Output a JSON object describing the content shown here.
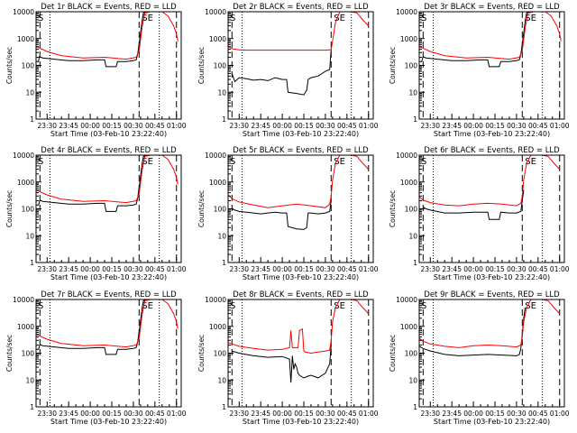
{
  "common": {
    "xlabel": "Start Time (03-Feb-10 23:22:40)",
    "ylabel": "Counts/sec",
    "xtick_labels": [
      "23:30",
      "23:45",
      "00:00",
      "00:15",
      "00:30",
      "00:45",
      "01:00"
    ],
    "ytick_labels": [
      "1",
      "10",
      "100",
      "1000",
      "10000"
    ],
    "colors": {
      "events": "#000000",
      "lld": "#ff0000",
      "axes": "#000000"
    }
  },
  "chart_data": [
    {
      "type": "line",
      "title": "Det 1r BLACK = Events, RED = LLD",
      "corner_labels": [
        "S",
        "SE"
      ],
      "ylim": [
        1,
        10000
      ],
      "yscale": "log",
      "xlim_minutes_after_2330": [
        -7.7,
        93.3
      ],
      "dashed_lines": [
        -5,
        64,
        90
      ],
      "dotted_lines": [
        2,
        78
      ],
      "series": [
        {
          "name": "Events",
          "x": [
            -7.5,
            -6,
            -5.5,
            -3,
            5,
            15,
            25,
            35,
            40,
            41,
            48,
            49,
            55,
            60,
            62,
            63,
            64.5,
            66,
            67,
            69
          ],
          "y": [
            140,
            140,
            210,
            190,
            170,
            150,
            150,
            160,
            160,
            90,
            90,
            140,
            140,
            150,
            160,
            260,
            1000,
            4500,
            9000,
            10000
          ]
        },
        {
          "name": "LLD",
          "x": [
            -7.5,
            0,
            10,
            25,
            40,
            55,
            62,
            64,
            66,
            68,
            72,
            76,
            80,
            84,
            88,
            90,
            91
          ],
          "y": [
            500,
            330,
            230,
            190,
            200,
            170,
            200,
            350,
            2500,
            9000,
            10000,
            10000,
            10000,
            7000,
            3000,
            1500,
            800
          ]
        }
      ]
    },
    {
      "type": "line",
      "title": "Det 2r BLACK = Events, RED = LLD",
      "corner_labels": [
        "S",
        "SE"
      ],
      "ylim": [
        1,
        10000
      ],
      "yscale": "log",
      "xlim_minutes_after_2330": [
        -7.7,
        93.3
      ],
      "dashed_lines": [
        -5,
        64,
        90
      ],
      "dotted_lines": [
        2,
        78
      ],
      "series": [
        {
          "name": "Events",
          "x": [
            -5,
            -3,
            0,
            5,
            10,
            15,
            20,
            25,
            30,
            33,
            34,
            40,
            45,
            47,
            48,
            50,
            55,
            60,
            63,
            64
          ],
          "y": [
            50,
            25,
            35,
            32,
            28,
            30,
            27,
            35,
            30,
            30,
            10,
            9,
            8,
            12,
            30,
            35,
            40,
            60,
            70,
            400
          ]
        },
        {
          "name": "LLD",
          "x": [
            -7.5,
            -5,
            0,
            5,
            10,
            20,
            30,
            40,
            50,
            60,
            63,
            64,
            65,
            67,
            70,
            74,
            78,
            82,
            86,
            90
          ],
          "y": [
            500,
            420,
            380,
            370,
            370,
            370,
            370,
            370,
            370,
            370,
            380,
            400,
            800,
            4000,
            10000,
            10000,
            10000,
            9000,
            5000,
            3000
          ]
        }
      ]
    },
    {
      "type": "line",
      "title": "Det 3r BLACK = Events, RED = LLD",
      "corner_labels": [
        "S",
        "SE"
      ],
      "ylim": [
        1,
        10000
      ],
      "yscale": "log",
      "xlim_minutes_after_2330": [
        -7.7,
        93.3
      ],
      "dashed_lines": [
        -5,
        64,
        90
      ],
      "dotted_lines": [
        2,
        78
      ],
      "series": [
        {
          "name": "Events",
          "x": [
            -7.5,
            -6,
            -5,
            -3,
            5,
            15,
            25,
            35,
            40,
            41,
            48,
            49,
            55,
            60,
            62,
            63,
            64.5,
            66,
            67,
            69
          ],
          "y": [
            140,
            140,
            210,
            190,
            170,
            150,
            150,
            160,
            160,
            90,
            90,
            140,
            140,
            150,
            160,
            260,
            1000,
            4500,
            9000,
            10000
          ]
        },
        {
          "name": "LLD",
          "x": [
            -7.5,
            0,
            10,
            25,
            40,
            55,
            62,
            64,
            66,
            68,
            72,
            76,
            80,
            84,
            88,
            90,
            91
          ],
          "y": [
            500,
            330,
            230,
            190,
            200,
            170,
            200,
            350,
            2500,
            9000,
            10000,
            10000,
            10000,
            7000,
            3000,
            1500,
            800
          ]
        }
      ]
    },
    {
      "type": "line",
      "title": "Det 4r BLACK = Events, RED = LLD",
      "corner_labels": [
        "S",
        "SE"
      ],
      "ylim": [
        1,
        10000
      ],
      "yscale": "log",
      "xlim_minutes_after_2330": [
        -7.7,
        93.3
      ],
      "dashed_lines": [
        -5,
        64,
        90
      ],
      "dotted_lines": [
        2,
        78
      ],
      "series": [
        {
          "name": "Events",
          "x": [
            -7.5,
            -6,
            -5,
            -3,
            5,
            15,
            25,
            35,
            40,
            41,
            48,
            49,
            55,
            60,
            62,
            63,
            64.5,
            66,
            67,
            69
          ],
          "y": [
            140,
            140,
            210,
            190,
            170,
            150,
            150,
            160,
            160,
            80,
            80,
            130,
            130,
            140,
            150,
            250,
            1000,
            4500,
            9000,
            10000
          ]
        },
        {
          "name": "LLD",
          "x": [
            -7.5,
            0,
            10,
            25,
            40,
            55,
            62,
            64,
            66,
            68,
            72,
            76,
            80,
            84,
            88,
            90,
            91
          ],
          "y": [
            500,
            330,
            230,
            190,
            200,
            170,
            200,
            350,
            2500,
            9000,
            10000,
            10000,
            10000,
            7000,
            3000,
            1500,
            800
          ]
        }
      ]
    },
    {
      "type": "line",
      "title": "Det 5r BLACK = Events, RED = LLD",
      "corner_labels": [
        "S",
        "SE"
      ],
      "ylim": [
        1,
        10000
      ],
      "yscale": "log",
      "xlim_minutes_after_2330": [
        -7.7,
        93.3
      ],
      "dashed_lines": [
        -5,
        64,
        90
      ],
      "dotted_lines": [
        2,
        78
      ],
      "series": [
        {
          "name": "Events",
          "x": [
            -5,
            -3,
            0,
            5,
            10,
            15,
            20,
            25,
            30,
            33,
            34,
            40,
            45,
            47,
            48,
            50,
            55,
            60,
            63,
            64
          ],
          "y": [
            100,
            90,
            80,
            75,
            70,
            65,
            70,
            75,
            70,
            70,
            22,
            18,
            17,
            20,
            70,
            70,
            65,
            70,
            80,
            200
          ]
        },
        {
          "name": "LLD",
          "x": [
            -7.5,
            -5,
            0,
            10,
            20,
            30,
            40,
            50,
            60,
            63,
            64,
            65,
            67,
            70,
            74,
            78,
            82,
            86,
            90
          ],
          "y": [
            320,
            240,
            180,
            140,
            110,
            130,
            150,
            130,
            110,
            150,
            300,
            1200,
            5000,
            10000,
            10000,
            10000,
            9000,
            5000,
            3000
          ]
        }
      ]
    },
    {
      "type": "line",
      "title": "Det 6r BLACK = Events, RED = LLD",
      "corner_labels": [
        "S",
        "SE"
      ],
      "ylim": [
        1,
        10000
      ],
      "yscale": "log",
      "xlim_minutes_after_2330": [
        -7.7,
        93.3
      ],
      "dashed_lines": [
        -5,
        64,
        90
      ],
      "dotted_lines": [
        2,
        78
      ],
      "series": [
        {
          "name": "Events",
          "x": [
            -5,
            -3,
            0,
            10,
            20,
            30,
            40,
            41,
            48,
            49,
            55,
            60,
            63,
            64,
            65
          ],
          "y": [
            120,
            100,
            90,
            70,
            70,
            75,
            75,
            40,
            40,
            75,
            70,
            70,
            80,
            200,
            500
          ]
        },
        {
          "name": "LLD",
          "x": [
            -7.5,
            -5,
            0,
            10,
            20,
            30,
            40,
            50,
            60,
            63,
            64,
            65,
            67,
            70,
            74,
            78,
            82,
            86,
            90
          ],
          "y": [
            280,
            210,
            170,
            140,
            130,
            150,
            160,
            150,
            130,
            160,
            300,
            1200,
            5000,
            10000,
            10000,
            10000,
            9000,
            5000,
            3000
          ]
        }
      ]
    },
    {
      "type": "line",
      "title": "Det 7r BLACK = Events, RED = LLD",
      "corner_labels": [
        "S",
        "SE"
      ],
      "ylim": [
        1,
        10000
      ],
      "yscale": "log",
      "xlim_minutes_after_2330": [
        -7.7,
        93.3
      ],
      "dashed_lines": [
        -5,
        64,
        90
      ],
      "dotted_lines": [
        2,
        78
      ],
      "series": [
        {
          "name": "Events",
          "x": [
            -7.5,
            -6,
            -5,
            -3,
            5,
            15,
            25,
            35,
            40,
            41,
            48,
            49,
            55,
            60,
            62,
            63,
            64.5,
            66,
            67,
            69
          ],
          "y": [
            140,
            140,
            210,
            190,
            170,
            150,
            150,
            160,
            160,
            90,
            90,
            140,
            140,
            150,
            160,
            260,
            1000,
            4500,
            9000,
            10000
          ]
        },
        {
          "name": "LLD",
          "x": [
            -7.5,
            0,
            10,
            25,
            40,
            55,
            62,
            64,
            66,
            68,
            72,
            76,
            80,
            84,
            88,
            90,
            91
          ],
          "y": [
            500,
            330,
            230,
            190,
            200,
            170,
            200,
            350,
            2500,
            9000,
            10000,
            10000,
            10000,
            7000,
            3000,
            1500,
            800
          ]
        }
      ]
    },
    {
      "type": "line",
      "title": "Det 8r BLACK = Events, RED = LLD",
      "corner_labels": [
        "S",
        "SE"
      ],
      "ylim": [
        1,
        10000
      ],
      "yscale": "log",
      "xlim_minutes_after_2330": [
        -7.7,
        93.3
      ],
      "dashed_lines": [
        -5,
        64,
        90
      ],
      "dotted_lines": [
        2,
        78
      ],
      "series": [
        {
          "name": "Events",
          "x": [
            -5,
            0,
            10,
            20,
            30,
            35,
            36,
            37,
            38,
            39,
            40,
            41,
            42,
            45,
            48,
            50,
            55,
            60,
            63,
            64
          ],
          "y": [
            120,
            100,
            80,
            70,
            75,
            60,
            8,
            80,
            25,
            40,
            30,
            18,
            15,
            12,
            14,
            15,
            12,
            18,
            40,
            200
          ]
        },
        {
          "name": "LLD",
          "x": [
            -7.5,
            -5,
            0,
            10,
            20,
            30,
            35,
            36,
            37,
            41,
            42,
            44,
            45,
            46,
            50,
            55,
            60,
            63,
            64,
            65,
            67,
            70,
            74,
            78,
            82,
            86,
            90
          ],
          "y": [
            250,
            220,
            180,
            150,
            130,
            140,
            160,
            700,
            160,
            160,
            700,
            800,
            120,
            110,
            100,
            110,
            120,
            130,
            300,
            1500,
            5000,
            10000,
            10000,
            10000,
            9000,
            5000,
            3000
          ]
        }
      ]
    },
    {
      "type": "line",
      "title": "Det 9r BLACK = Events, RED = LLD",
      "corner_labels": [
        "S",
        "SE"
      ],
      "ylim": [
        1,
        10000
      ],
      "yscale": "log",
      "xlim_minutes_after_2330": [
        -7.7,
        93.3
      ],
      "dashed_lines": [
        -5,
        64,
        90
      ],
      "dotted_lines": [
        2,
        78
      ],
      "series": [
        {
          "name": "Events",
          "x": [
            -7.5,
            -5,
            0,
            10,
            20,
            30,
            40,
            50,
            60,
            62,
            63,
            64,
            65,
            66
          ],
          "y": [
            180,
            150,
            120,
            90,
            80,
            85,
            90,
            85,
            80,
            90,
            150,
            500,
            2000,
            5000
          ]
        },
        {
          "name": "LLD",
          "x": [
            -7.5,
            -5,
            0,
            10,
            20,
            30,
            40,
            50,
            60,
            63,
            64,
            65,
            67,
            70,
            74,
            78,
            82,
            86,
            90
          ],
          "y": [
            350,
            280,
            220,
            180,
            160,
            190,
            200,
            190,
            170,
            200,
            400,
            1500,
            5000,
            10000,
            10000,
            10000,
            9000,
            5000,
            3000
          ]
        }
      ]
    }
  ]
}
